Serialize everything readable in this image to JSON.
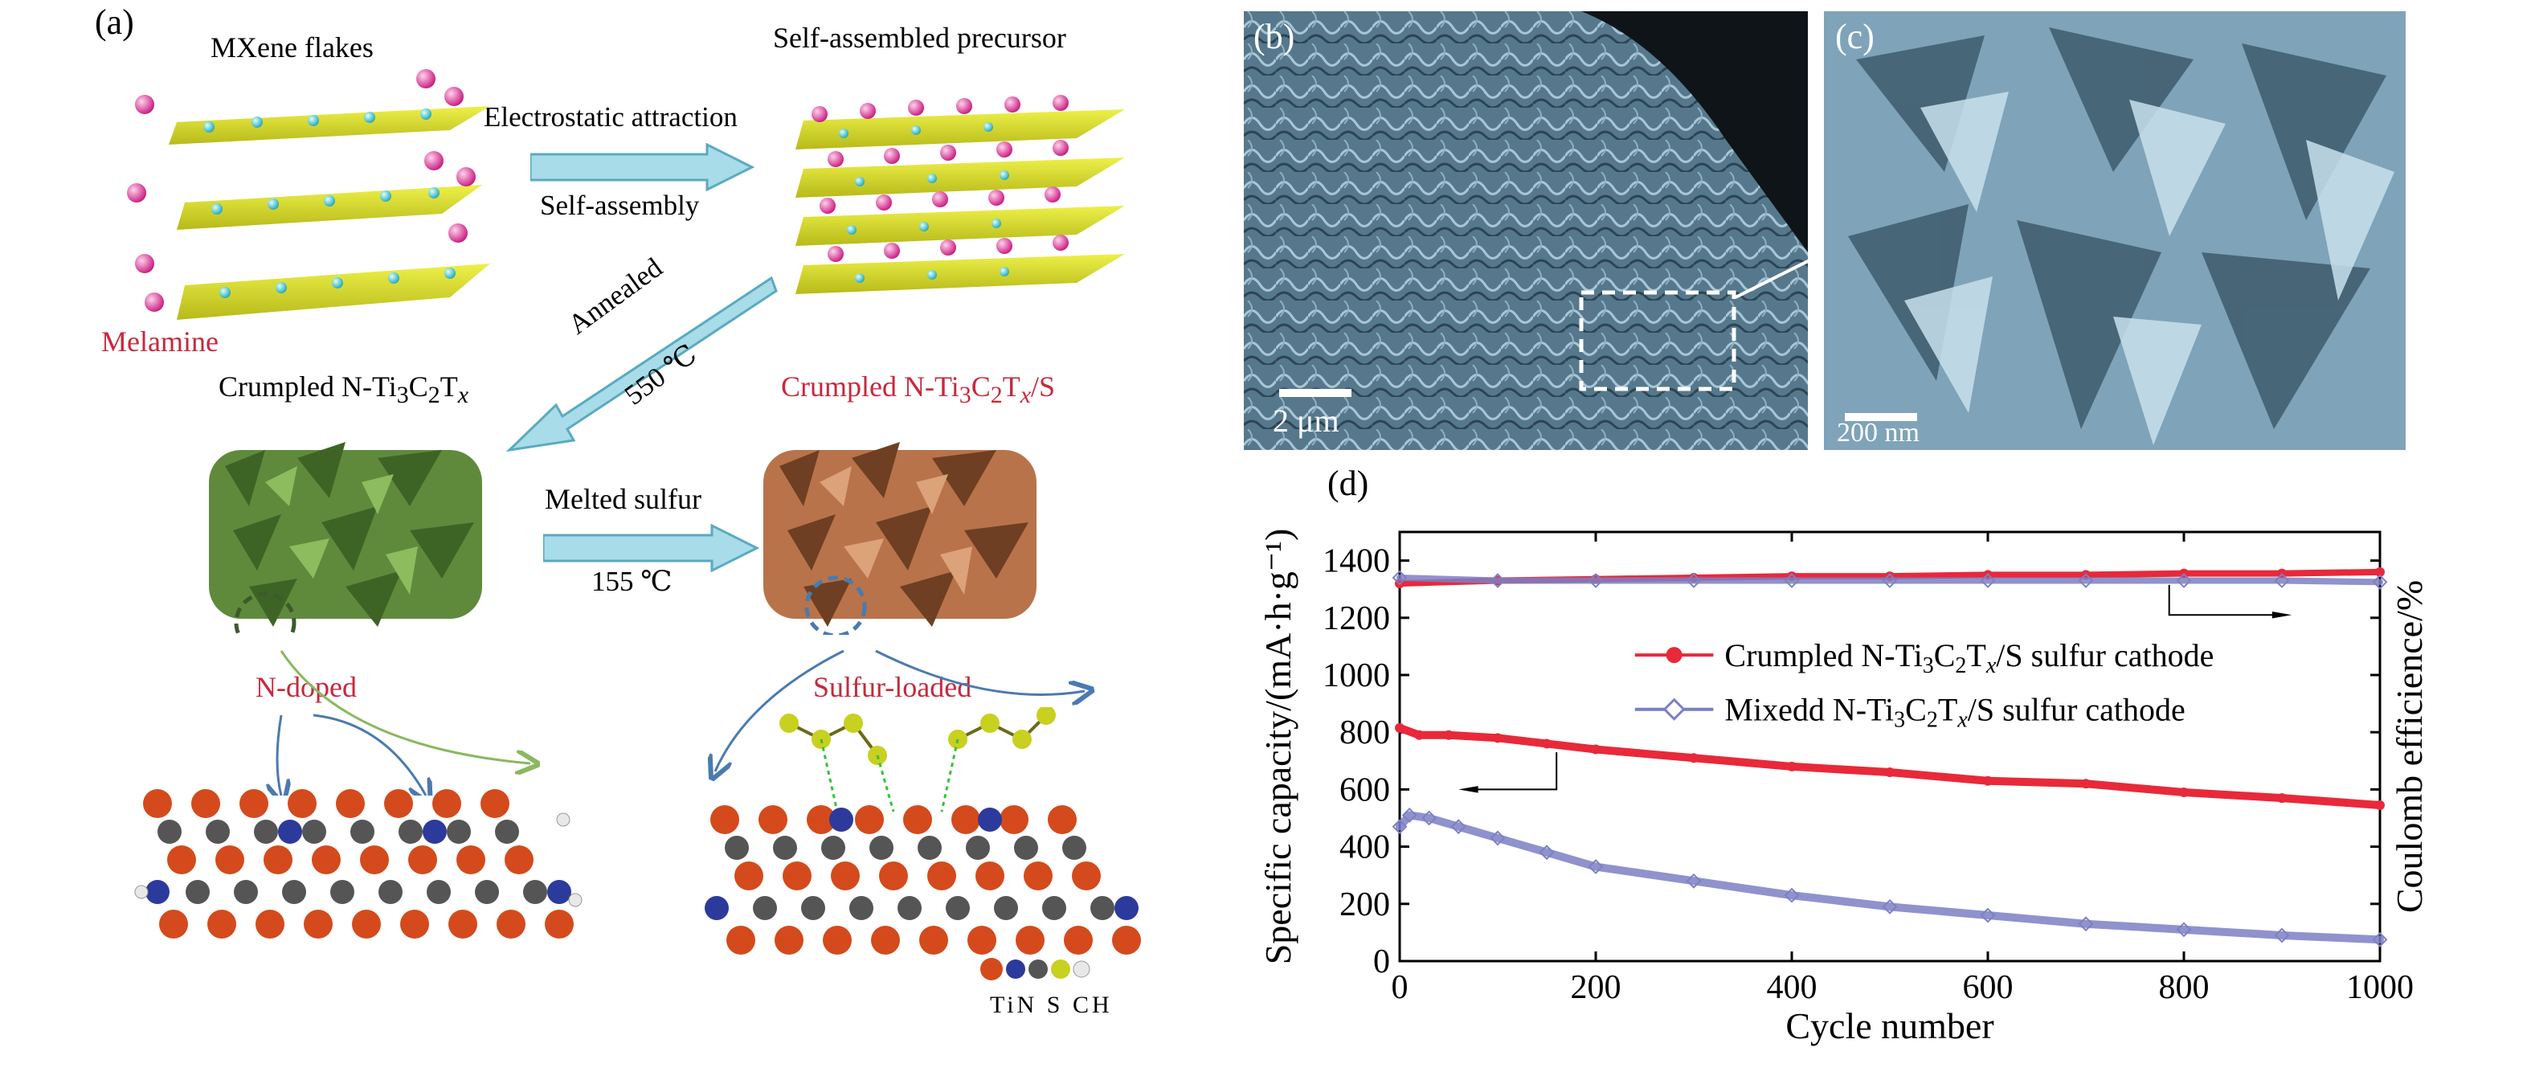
{
  "panel_a": {
    "label": "(a)",
    "mxene_flakes": "MXene flakes",
    "melamine": "Melamine",
    "self_assembled_precursor": "Self-assembled precursor",
    "arrow1_top": "Electrostatic attraction",
    "arrow1_bottom": "Self-assembly",
    "annealed": "Annealed",
    "annealed_temp": "550 ℃",
    "crumpled_prefix": "Crumpled N-Ti",
    "crumpled_s_prefix": "Crumpled N-Ti",
    "melted_sulfur": "Melted sulfur",
    "melted_temp": "155 ℃",
    "n_doped": "N-doped",
    "sulfur_loaded": "Sulfur-loaded",
    "atom_legend": "TiN S CH"
  },
  "panel_b": {
    "label": "(b)",
    "scale": "2 μm"
  },
  "panel_c": {
    "label": "(c)",
    "scale": "200 nm"
  },
  "panel_d": {
    "label": "(d)"
  },
  "colors": {
    "arrow_fill": "#a8dce9",
    "flake": "#d8dc2a",
    "crumpled_green": "#5f8a3c",
    "crumpled_brown": "#b8734a",
    "red_series": "#e8293a",
    "blue_series": "#7c7fc4",
    "sem_blue": "#7fa3b8"
  },
  "chart_data": {
    "type": "line",
    "xlabel": "Cycle number",
    "ylabel": "Specific capacity/(mA·h·g⁻¹)",
    "y2label": "Coulomb efficience/%",
    "xlim": [
      0,
      1000
    ],
    "ylim": [
      0,
      1500
    ],
    "xticks": [
      "0",
      "200",
      "400",
      "600",
      "800",
      "1000"
    ],
    "yticks": [
      "0",
      "200",
      "400",
      "600",
      "800",
      "1000",
      "1200",
      "1400"
    ],
    "legend_position": "center-right",
    "series": [
      {
        "name": "Crumpled N-Ti3C2Tx/S sulfur cathode",
        "role": "capacity",
        "color": "#e8293a",
        "x": [
          0,
          20,
          50,
          100,
          150,
          200,
          300,
          400,
          500,
          600,
          700,
          800,
          900,
          1000
        ],
        "y": [
          815,
          790,
          790,
          780,
          760,
          740,
          710,
          680,
          660,
          630,
          620,
          590,
          570,
          545
        ]
      },
      {
        "name": "Mixedd N-Ti3C2Tx/S sulfur cathode",
        "role": "capacity",
        "color": "#7c7fc4",
        "x": [
          0,
          10,
          30,
          60,
          100,
          150,
          200,
          300,
          400,
          500,
          600,
          700,
          800,
          900,
          1000
        ],
        "y": [
          470,
          510,
          500,
          470,
          430,
          380,
          330,
          280,
          230,
          190,
          160,
          130,
          110,
          90,
          75
        ]
      },
      {
        "role": "efficiency",
        "color": "#e8293a",
        "x": [
          0,
          100,
          200,
          300,
          400,
          500,
          600,
          700,
          800,
          900,
          1000
        ],
        "y": [
          1320,
          1330,
          1335,
          1340,
          1345,
          1345,
          1350,
          1350,
          1355,
          1355,
          1360
        ]
      },
      {
        "role": "efficiency",
        "color": "#7c7fc4",
        "x": [
          0,
          100,
          200,
          300,
          400,
          500,
          600,
          700,
          800,
          900,
          1000
        ],
        "y": [
          1340,
          1330,
          1330,
          1330,
          1330,
          1330,
          1330,
          1330,
          1330,
          1330,
          1325
        ]
      }
    ]
  }
}
